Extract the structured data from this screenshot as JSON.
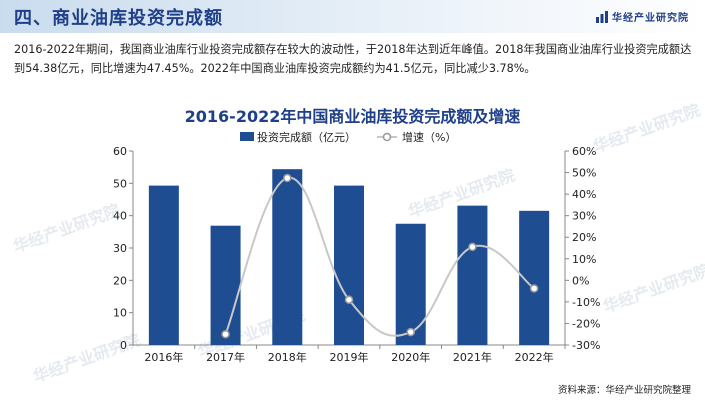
{
  "header": {
    "section_title": "四、商业油库投资完成额",
    "brand": "华经产业研究院"
  },
  "intro_text": "2016-2022年期间，我国商业油库行业投资完成额存在较大的波动性，于2018年达到近年峰值。2018年我国商业油库行业投资完成额达到54.38亿元，同比增速为47.45%。2022年中国商业油库投资完成额约为41.5亿元，同比减少3.78%。",
  "watermark": "华经产业研究院",
  "source": "资料来源：华经产业研究院整理",
  "colors": {
    "bar": "#1f4d91",
    "line": "#c8c8c8",
    "title": "#1f3f88"
  },
  "chart_data": {
    "type": "bar",
    "title": "2016-2022年中国商业油库投资完成额及增速",
    "categories": [
      "2016年",
      "2017年",
      "2018年",
      "2019年",
      "2020年",
      "2021年",
      "2022年"
    ],
    "series": [
      {
        "name": "投资完成额（亿元）",
        "type": "bar",
        "axis": "left",
        "values": [
          49.3,
          36.9,
          54.38,
          49.3,
          37.5,
          43.1,
          41.5
        ]
      },
      {
        "name": "增速（%）",
        "type": "line",
        "axis": "right",
        "values": [
          null,
          -25.0,
          47.45,
          -9.0,
          -24.0,
          15.5,
          -3.78
        ]
      }
    ],
    "ylim": [
      0,
      60
    ],
    "yticks": [
      "0",
      "10",
      "20",
      "30",
      "40",
      "50",
      "60"
    ],
    "y2lim": [
      -30,
      60
    ],
    "y2ticks": [
      "-30%",
      "-20%",
      "-10%",
      "0%",
      "10%",
      "20%",
      "30%",
      "40%",
      "50%",
      "60%"
    ],
    "legend_position": "top",
    "grid": false
  }
}
